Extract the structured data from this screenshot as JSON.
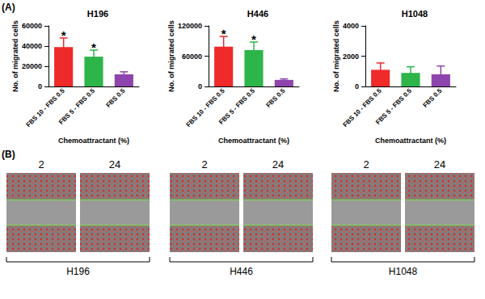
{
  "chart_data": [
    {
      "type": "bar",
      "title": "H196",
      "categories": [
        "FBS 10 - FBS 0.5",
        "FBS 5 - FBS 0.5",
        "FBS 0.5"
      ],
      "values": [
        39000,
        29500,
        12000
      ],
      "errors": [
        9000,
        6500,
        2500
      ],
      "colors": [
        "#ee2a2a",
        "#2db54a",
        "#8e44ad"
      ],
      "annotations": [
        "*",
        "*",
        null
      ],
      "x_label": "Chemoattractant (%)",
      "y_label": "No. of migrated cells",
      "ylim": [
        0,
        60000
      ],
      "yticks": [
        0,
        20000,
        40000,
        60000
      ],
      "grid": false
    },
    {
      "type": "bar",
      "title": "H446",
      "categories": [
        "FBS 10 - FBS 0.5",
        "FBS 5 - FBS 0.5",
        "FBS 0.5"
      ],
      "values": [
        79000,
        72000,
        13000
      ],
      "errors": [
        20000,
        16000,
        2000
      ],
      "colors": [
        "#ee2a2a",
        "#2db54a",
        "#8e44ad"
      ],
      "annotations": [
        "*",
        "*",
        null
      ],
      "x_label": "Chemoattractant (%)",
      "y_label": "No. of migrated cells",
      "ylim": [
        0,
        120000
      ],
      "yticks": [
        0,
        60000,
        120000
      ],
      "grid": false
    },
    {
      "type": "bar",
      "title": "H1048",
      "categories": [
        "FBS 10 - FBS 0.5",
        "FBS 5 - FBS 0.5",
        "FBS 0.5"
      ],
      "values": [
        1100,
        900,
        800
      ],
      "errors": [
        450,
        400,
        550
      ],
      "colors": [
        "#ee2a2a",
        "#2db54a",
        "#8e44ad"
      ],
      "annotations": [
        null,
        null,
        null
      ],
      "x_label": "Chemoattractant (%)",
      "y_label": "No. of migrated cells",
      "ylim": [
        0,
        4000
      ],
      "yticks": [
        0,
        2000,
        4000
      ],
      "grid": false
    }
  ],
  "panel_labels": [
    "(A)",
    "(B)"
  ],
  "wound_healing": {
    "cell_lines": [
      {
        "name": "H196",
        "timepoints": [
          "2",
          "24"
        ]
      },
      {
        "name": "H446",
        "timepoints": [
          "2",
          "24"
        ]
      },
      {
        "name": "H1048",
        "timepoints": [
          "2",
          "24"
        ]
      }
    ]
  }
}
